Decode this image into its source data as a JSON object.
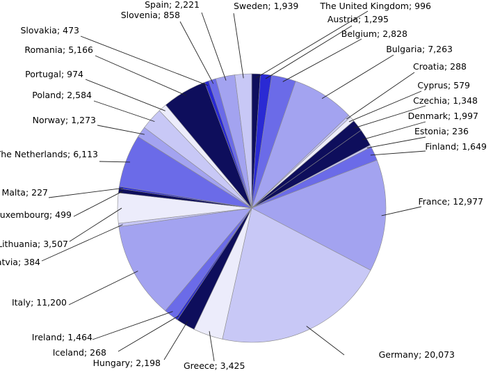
{
  "chart_data": {
    "type": "pie",
    "start_at": "top",
    "direction": "clockwise",
    "label_format": "{category}; {value}",
    "colors": [
      "#0e0e5c",
      "#2a2ad4",
      "#6b6be8",
      "#a3a3f0",
      "#c8c8f6",
      "#ececfb"
    ],
    "slices": [
      {
        "label": "The United Kingdom",
        "value": 996,
        "display": "996"
      },
      {
        "label": "Austria",
        "value": 1295,
        "display": "1,295"
      },
      {
        "label": "Belgium",
        "value": 2828,
        "display": "2,828"
      },
      {
        "label": "Bulgaria",
        "value": 7263,
        "display": "7,263"
      },
      {
        "label": "Croatia",
        "value": 288,
        "display": "288"
      },
      {
        "label": "Cyprus",
        "value": 579,
        "display": "579"
      },
      {
        "label": "Czechia",
        "value": 1348,
        "display": "1,348"
      },
      {
        "label": "Denmark",
        "value": 1997,
        "display": "1,997"
      },
      {
        "label": "Estonia",
        "value": 236,
        "display": "236"
      },
      {
        "label": "Finland",
        "value": 1649,
        "display": "1,649"
      },
      {
        "label": "France",
        "value": 12977,
        "display": "12,977"
      },
      {
        "label": "Germany",
        "value": 20073,
        "display": "20,073"
      },
      {
        "label": "Greece",
        "value": 3425,
        "display": "3,425"
      },
      {
        "label": "Hungary",
        "value": 2198,
        "display": "2,198"
      },
      {
        "label": "Iceland",
        "value": 268,
        "display": "268"
      },
      {
        "label": "Ireland",
        "value": 1464,
        "display": "1,464"
      },
      {
        "label": "Italy",
        "value": 11200,
        "display": "11,200"
      },
      {
        "label": "Latvia",
        "value": 384,
        "display": "384"
      },
      {
        "label": "Lithuania",
        "value": 3507,
        "display": "3,507"
      },
      {
        "label": "Luxembourg",
        "value": 499,
        "display": "499"
      },
      {
        "label": "Malta",
        "value": 227,
        "display": "227"
      },
      {
        "label": "The Netherlands",
        "value": 6113,
        "display": "6,113"
      },
      {
        "label": "Norway",
        "value": 1273,
        "display": "1,273"
      },
      {
        "label": "Poland",
        "value": 2584,
        "display": "2,584"
      },
      {
        "label": "Portugal",
        "value": 974,
        "display": "974"
      },
      {
        "label": "Romania",
        "value": 5166,
        "display": "5,166"
      },
      {
        "label": "Slovakia",
        "value": 473,
        "display": "473"
      },
      {
        "label": "Slovenia",
        "value": 858,
        "display": "858"
      },
      {
        "label": "Spain",
        "value": 2221,
        "display": "2,221"
      },
      {
        "label": "Sweden",
        "value": 1939,
        "display": "1,939"
      }
    ]
  }
}
